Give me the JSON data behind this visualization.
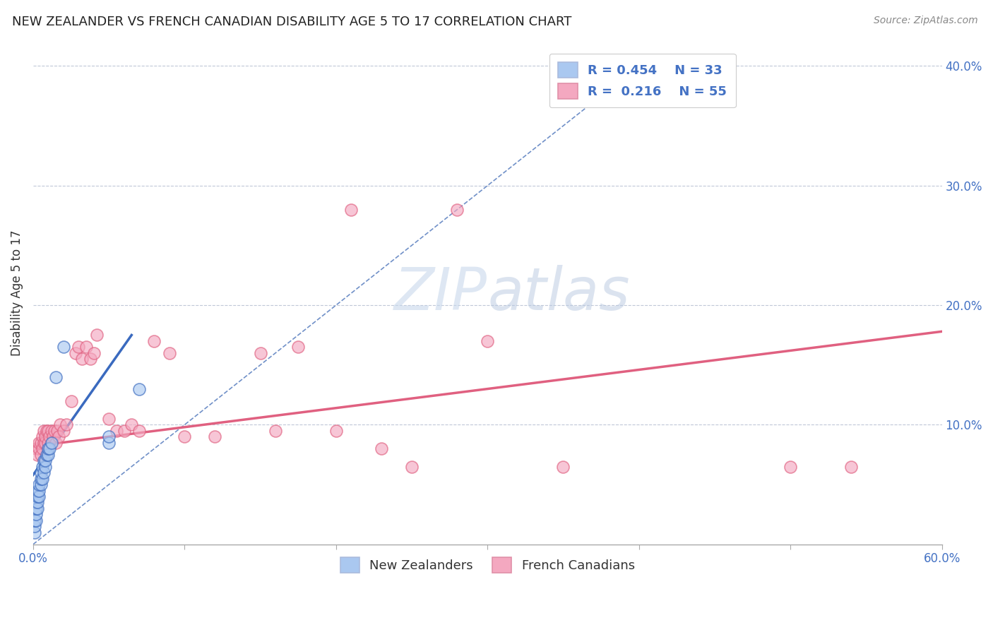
{
  "title": "NEW ZEALANDER VS FRENCH CANADIAN DISABILITY AGE 5 TO 17 CORRELATION CHART",
  "source": "Source: ZipAtlas.com",
  "ylabel": "Disability Age 5 to 17",
  "xlim": [
    0.0,
    0.6
  ],
  "ylim": [
    0.0,
    0.42
  ],
  "y_ticks_right": [
    0.1,
    0.2,
    0.3,
    0.4
  ],
  "y_tick_labels_right": [
    "10.0%",
    "20.0%",
    "30.0%",
    "40.0%"
  ],
  "nz_R": 0.454,
  "nz_N": 33,
  "fc_R": 0.216,
  "fc_N": 55,
  "nz_color": "#aac8f0",
  "fc_color": "#f4a8c0",
  "nz_line_color": "#3a6abf",
  "fc_line_color": "#e06080",
  "diagonal_color": "#7090c8",
  "nz_scatter_x": [
    0.001,
    0.001,
    0.001,
    0.002,
    0.002,
    0.002,
    0.002,
    0.003,
    0.003,
    0.003,
    0.003,
    0.004,
    0.004,
    0.004,
    0.005,
    0.005,
    0.005,
    0.006,
    0.006,
    0.007,
    0.007,
    0.008,
    0.008,
    0.009,
    0.01,
    0.01,
    0.011,
    0.012,
    0.015,
    0.02,
    0.05,
    0.05,
    0.07
  ],
  "nz_scatter_y": [
    0.01,
    0.015,
    0.02,
    0.02,
    0.025,
    0.03,
    0.035,
    0.03,
    0.035,
    0.04,
    0.045,
    0.04,
    0.045,
    0.05,
    0.05,
    0.055,
    0.06,
    0.055,
    0.065,
    0.06,
    0.07,
    0.065,
    0.07,
    0.075,
    0.075,
    0.08,
    0.08,
    0.085,
    0.14,
    0.165,
    0.085,
    0.09,
    0.13
  ],
  "fc_scatter_x": [
    0.002,
    0.003,
    0.004,
    0.004,
    0.005,
    0.005,
    0.006,
    0.006,
    0.007,
    0.007,
    0.008,
    0.008,
    0.009,
    0.01,
    0.01,
    0.011,
    0.012,
    0.013,
    0.014,
    0.015,
    0.016,
    0.017,
    0.018,
    0.02,
    0.022,
    0.025,
    0.028,
    0.03,
    0.032,
    0.035,
    0.038,
    0.04,
    0.042,
    0.05,
    0.055,
    0.06,
    0.065,
    0.07,
    0.08,
    0.09,
    0.1,
    0.12,
    0.15,
    0.16,
    0.175,
    0.2,
    0.21,
    0.23,
    0.25,
    0.28,
    0.3,
    0.35,
    0.38,
    0.5,
    0.54
  ],
  "fc_scatter_y": [
    0.08,
    0.075,
    0.08,
    0.085,
    0.075,
    0.085,
    0.08,
    0.09,
    0.085,
    0.095,
    0.085,
    0.09,
    0.095,
    0.085,
    0.095,
    0.09,
    0.095,
    0.09,
    0.095,
    0.085,
    0.095,
    0.09,
    0.1,
    0.095,
    0.1,
    0.12,
    0.16,
    0.165,
    0.155,
    0.165,
    0.155,
    0.16,
    0.175,
    0.105,
    0.095,
    0.095,
    0.1,
    0.095,
    0.17,
    0.16,
    0.09,
    0.09,
    0.16,
    0.095,
    0.165,
    0.095,
    0.28,
    0.08,
    0.065,
    0.28,
    0.17,
    0.065,
    0.38,
    0.065,
    0.065
  ],
  "nz_line_x0": 0.0,
  "nz_line_y0": 0.058,
  "nz_line_x1": 0.065,
  "nz_line_y1": 0.175,
  "fc_line_x0": 0.0,
  "fc_line_y0": 0.082,
  "fc_line_x1": 0.6,
  "fc_line_y1": 0.178
}
